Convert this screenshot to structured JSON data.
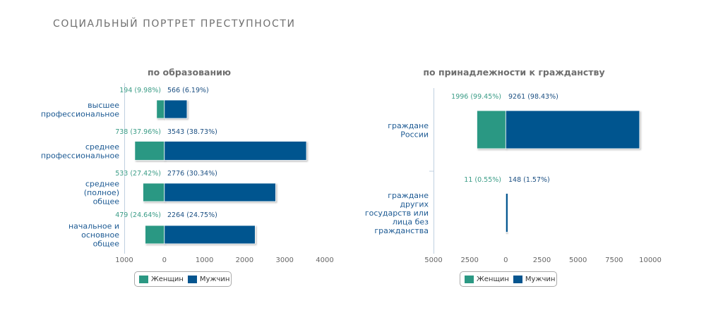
{
  "page_title": "СОЦИАЛЬНЫЙ ПОРТРЕТ ПРЕСТУПНОСТИ",
  "colors": {
    "women": "#2b9883",
    "men": "#05558f"
  },
  "legend": {
    "women": "Женщин",
    "men": "Мужчин"
  },
  "chart_data": [
    {
      "type": "bar",
      "orientation": "horizontal-diverging",
      "title": "по образованию",
      "categories": [
        "высшее\nпрофессиональное",
        "среднее\nпрофессиональное",
        "среднее\n(полное)\nобщее",
        "начальное и\nосновное\nобщее"
      ],
      "series": [
        {
          "name": "Женщин",
          "values": [
            194,
            738,
            533,
            479
          ],
          "labels": [
            "194 (9.98%)",
            "738 (37.96%)",
            "533 (27.42%)",
            "479 (24.64%)"
          ]
        },
        {
          "name": "Мужчин",
          "values": [
            566,
            3543,
            2776,
            2264
          ],
          "labels": [
            "566 (6.19%)",
            "3543 (38.73%)",
            "2776 (30.34%)",
            "2264 (24.75%)"
          ]
        }
      ],
      "xlim": [
        -1000,
        4000
      ],
      "xticks": [
        "1000",
        "0",
        "1000",
        "2000",
        "3000",
        "4000"
      ],
      "xtick_values": [
        -1000,
        0,
        1000,
        2000,
        3000,
        4000
      ],
      "legend_position": "bottom"
    },
    {
      "type": "bar",
      "orientation": "horizontal-diverging",
      "title": "по принадлежности к гражданству",
      "categories": [
        "граждане\nРоссии",
        "граждане\nдругих\nгосударств или\nлица без\nгражданства"
      ],
      "series": [
        {
          "name": "Женщин",
          "values": [
            1996,
            11
          ],
          "labels": [
            "1996 (99.45%)",
            "11 (0.55%)"
          ]
        },
        {
          "name": "Мужчин",
          "values": [
            9261,
            148
          ],
          "labels": [
            "9261 (98.43%)",
            "148 (1.57%)"
          ]
        }
      ],
      "xlim": [
        -5000,
        10000
      ],
      "xticks": [
        "5000",
        "2500",
        "0",
        "2500",
        "5000",
        "7500",
        "10000"
      ],
      "xtick_values": [
        -5000,
        -2500,
        0,
        2500,
        5000,
        7500,
        10000
      ],
      "legend_position": "bottom"
    }
  ]
}
